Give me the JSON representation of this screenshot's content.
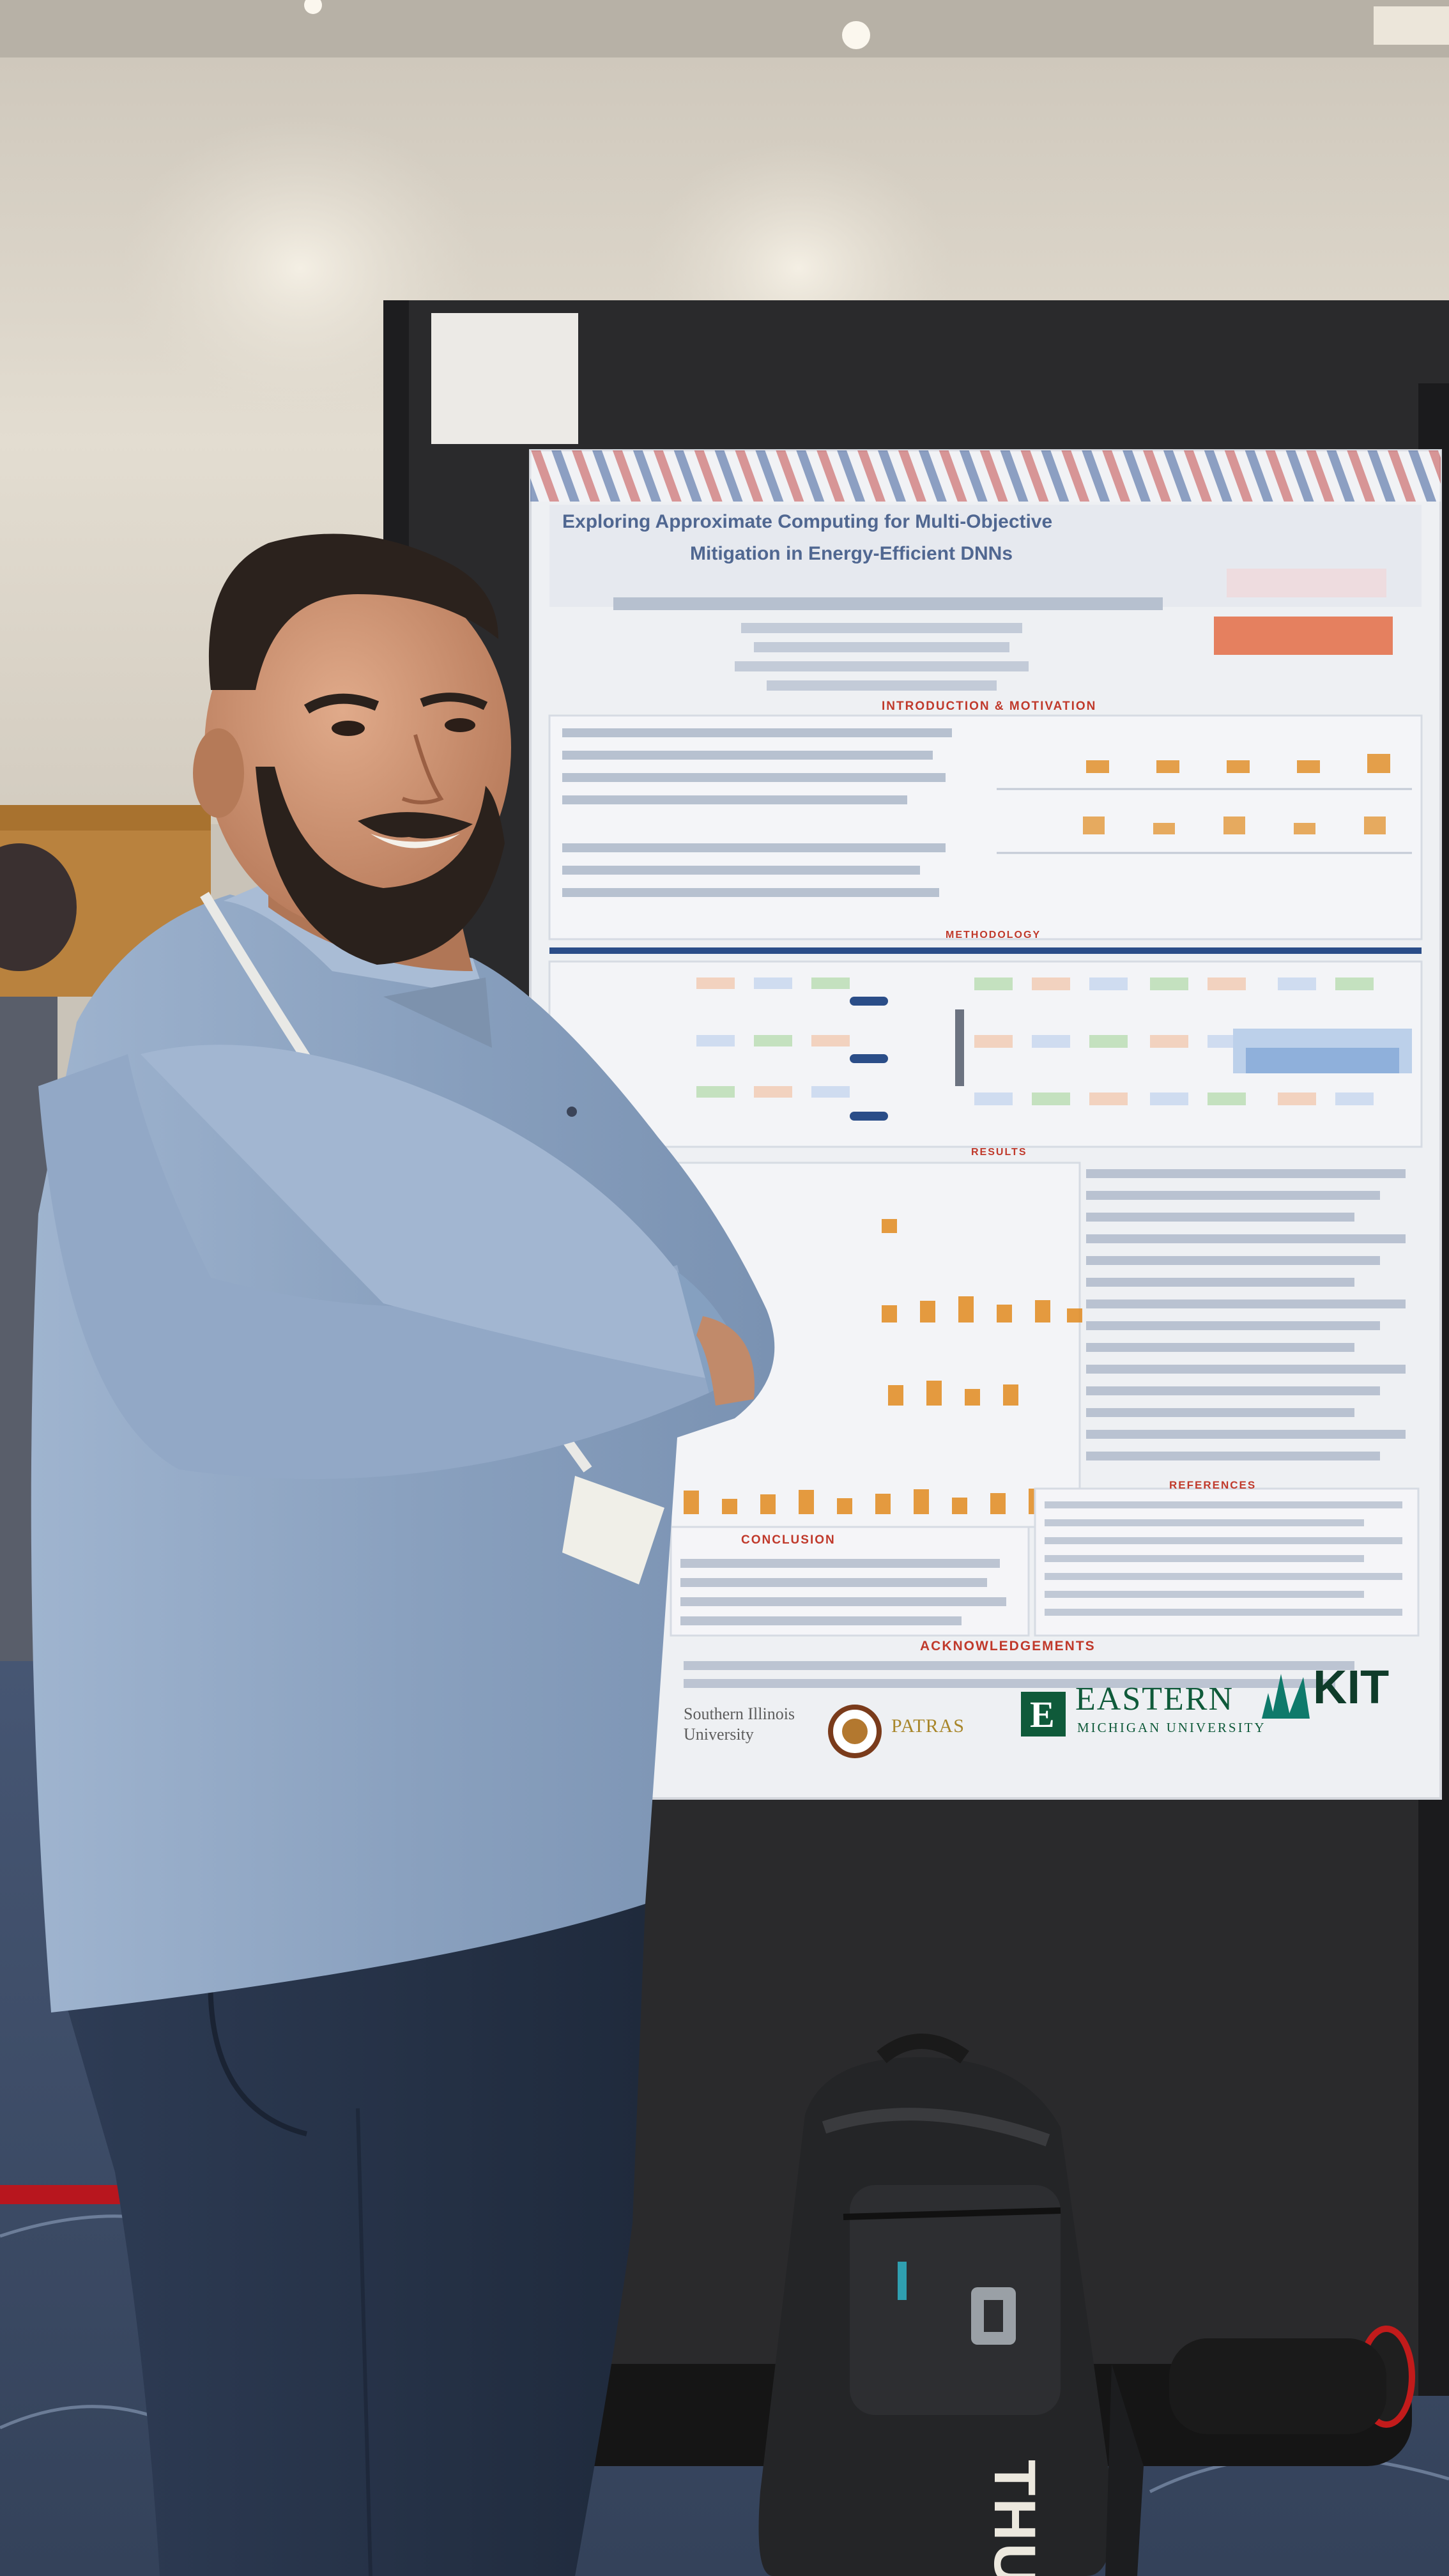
{
  "poster": {
    "title_line1": "Exploring Approximate Computing for Multi-Objective",
    "title_line2": "Mitigation in Energy-Efficient DNNs",
    "section_intro": "INTRODUCTION & MOTIVATION",
    "section_method": "METHODOLOGY",
    "section_results": "RESULTS",
    "section_conclusion": "CONCLUSION",
    "section_references": "REFERENCES",
    "section_ack": "ACKNOWLEDGEMENTS"
  },
  "logos": {
    "eastern_mark": "E",
    "eastern_name": "EASTERN",
    "eastern_sub": "MICHIGAN UNIVERSITY",
    "kit": "KIT",
    "patras": "PATRAS",
    "illinois_line1": "Southern Illinois",
    "illinois_line2": "University"
  },
  "backpack": {
    "brand": "THULE"
  },
  "colors": {
    "wall": "#d9d3c8",
    "board": "#2b2b2d",
    "poster": "#eef0f3",
    "shirt": "#8fa6c4",
    "pants": "#27344a",
    "carpet": "#3b4a63",
    "accent_red": "#c0392b",
    "bar_orange": "#e08a1e"
  }
}
